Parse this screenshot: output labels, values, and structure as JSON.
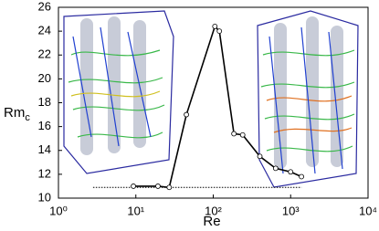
{
  "chart_data": {
    "type": "line",
    "x_label": "Re",
    "y_label": "Rm",
    "y_label_subscript": "c",
    "x": [
      9.3,
      19.3,
      27,
      45,
      105,
      120,
      185,
      240,
      400,
      640,
      1000,
      1380
    ],
    "series": [
      {
        "color": "#000000",
        "values": [
          11.0,
          11.0,
          10.9,
          17.0,
          24.4,
          24.0,
          15.4,
          15.3,
          13.5,
          12.5,
          12.2,
          11.8
        ]
      }
    ],
    "reference_line": {
      "x": [
        2.8,
        1380
      ],
      "y": 10.9,
      "color": "#000000"
    },
    "xscale": "log",
    "xlim": [
      1,
      10000
    ],
    "xticks": [
      {
        "value": 1,
        "label": "10⁰"
      },
      {
        "value": 10,
        "label": "10¹"
      },
      {
        "value": 100,
        "label": "10²"
      },
      {
        "value": 1000,
        "label": "10³"
      },
      {
        "value": 10000,
        "label": "10⁴"
      }
    ],
    "ylim": [
      10,
      26
    ],
    "yticks": [
      10,
      12,
      14,
      16,
      18,
      20,
      22,
      24,
      26
    ]
  }
}
